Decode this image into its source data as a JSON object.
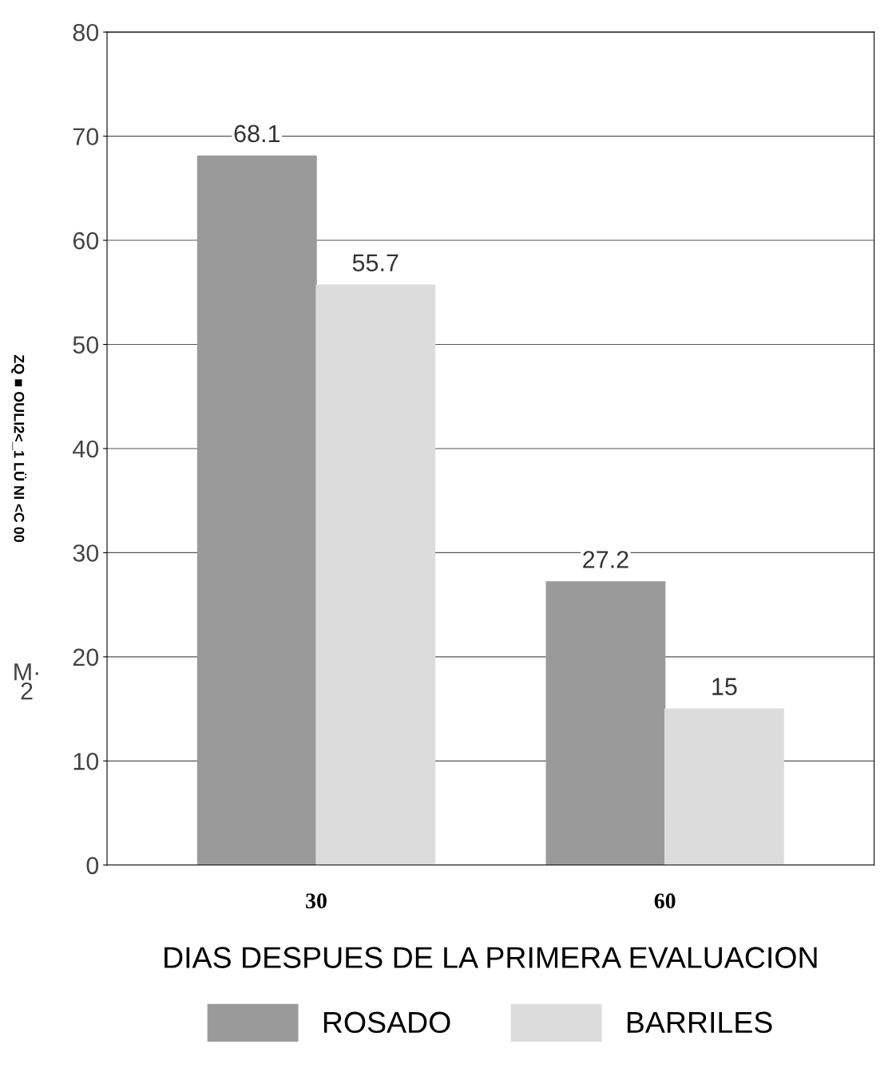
{
  "chart_data": {
    "type": "bar",
    "categories": [
      "30",
      "60"
    ],
    "series": [
      {
        "name": "ROSADO",
        "color": "#9a9a9a",
        "values": [
          68.1,
          27.2
        ]
      },
      {
        "name": "BARRILES",
        "color": "#dcdcdc",
        "values": [
          55.7,
          15
        ]
      }
    ],
    "xlabel": "DIAS DESPUES DE LA PRIMERA EVALUACION",
    "ylabel": "ZQ ■ OULI2<_1 LÜ NI <C 00",
    "annotations": [
      "M·\n2"
    ],
    "ylim": [
      0,
      80
    ],
    "yticks": [
      0,
      10,
      20,
      30,
      40,
      50,
      60,
      70,
      80
    ],
    "grid": "y",
    "data_labels": true,
    "legend": "bottom"
  }
}
